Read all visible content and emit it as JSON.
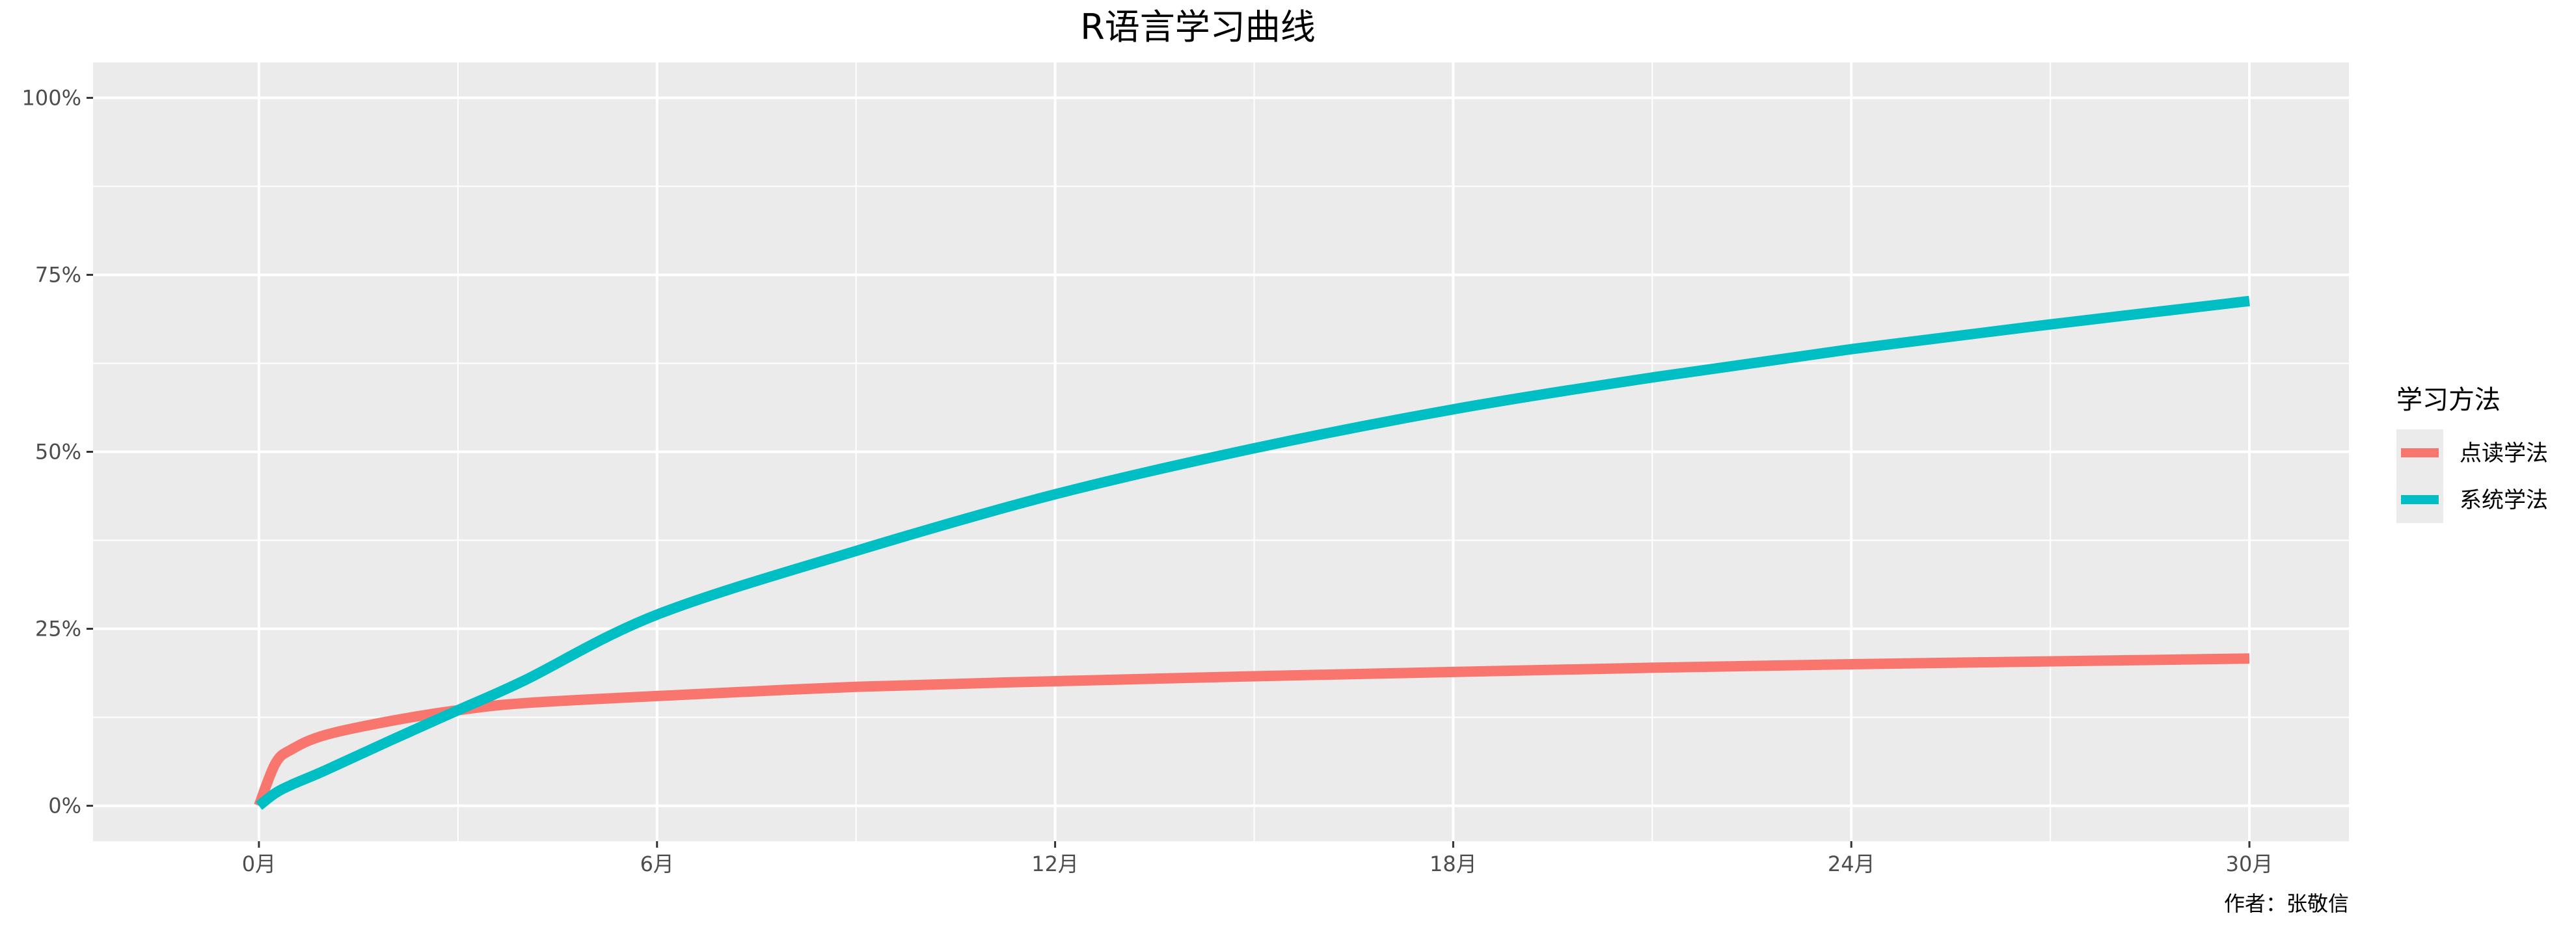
{
  "chart_data": {
    "type": "line",
    "title": "R语言学习曲线",
    "caption": "作者：张敬信",
    "xlabel": "",
    "ylabel": "",
    "xlim": [
      -2.5,
      31.5
    ],
    "ylim": [
      -5,
      105
    ],
    "x_ticks": [
      0,
      6,
      12,
      18,
      24,
      30
    ],
    "x_tick_labels": [
      "0月",
      "6月",
      "12月",
      "18月",
      "24月",
      "30月"
    ],
    "y_ticks": [
      0,
      25,
      50,
      75,
      100
    ],
    "y_tick_labels": [
      "0%",
      "25%",
      "50%",
      "75%",
      "100%"
    ],
    "grid": true,
    "legend": {
      "title": "学习方法",
      "position": "right"
    },
    "series": [
      {
        "name": "点读学法",
        "color": "#F8766D",
        "x": [
          0,
          0.25,
          0.5,
          1,
          2,
          3,
          4,
          6,
          9,
          12,
          15,
          18,
          21,
          24,
          27,
          30
        ],
        "y": [
          0,
          6,
          8,
          10,
          12,
          13.5,
          14.5,
          15.5,
          16.8,
          17.6,
          18.3,
          18.9,
          19.5,
          20,
          20.4,
          20.8
        ]
      },
      {
        "name": "系统学法",
        "color": "#00BFC4",
        "x": [
          0,
          0.25,
          0.5,
          1,
          2,
          3,
          4,
          6,
          9,
          12,
          15,
          18,
          21,
          24,
          27,
          30
        ],
        "y": [
          0,
          1.8,
          3,
          5,
          9.3,
          13.5,
          17.7,
          27,
          36,
          44,
          50.5,
          56,
          60.5,
          64.5,
          68,
          71.3
        ]
      }
    ]
  }
}
